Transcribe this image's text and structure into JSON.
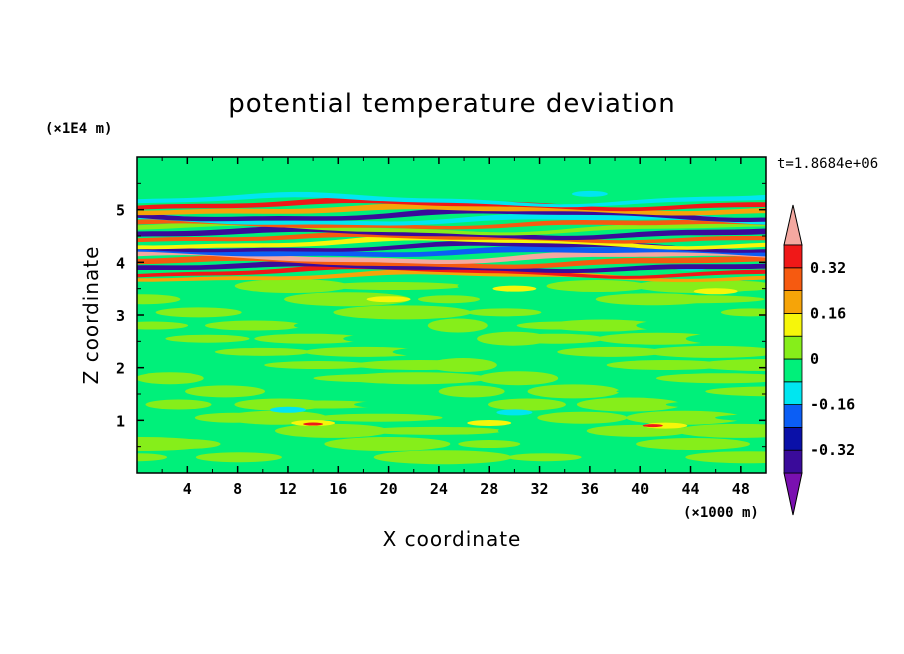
{
  "chart_data": {
    "type": "heatmap",
    "title": "potential temperature deviation",
    "xlabel": "X coordinate",
    "ylabel": "Z coordinate",
    "x_unit": "(×1000 m)",
    "y_unit": "(×1E4 m)",
    "time_label": "t=1.8684e+06",
    "xlim": [
      0,
      50
    ],
    "ylim": [
      0,
      6
    ],
    "x_ticks": [
      4,
      8,
      12,
      16,
      20,
      24,
      28,
      32,
      36,
      40,
      44,
      48
    ],
    "y_ticks": [
      1,
      2,
      3,
      4,
      5
    ],
    "x_tick_labels": [
      "4",
      "8",
      "12",
      "16",
      "20",
      "24",
      "28",
      "32",
      "36",
      "40",
      "44",
      "48"
    ],
    "y_tick_labels": [
      "1",
      "2",
      "3",
      "4",
      "5"
    ],
    "colorbar": {
      "levels": [
        -0.48,
        -0.4,
        -0.32,
        -0.24,
        -0.16,
        -0.08,
        0,
        0.08,
        0.16,
        0.24,
        0.32,
        0.4,
        0.48
      ],
      "tick_values": [
        -0.32,
        -0.16,
        0,
        0.16,
        0.32
      ],
      "tick_labels": [
        "-0.32",
        "-0.16",
        "0",
        "0.16",
        "0.32"
      ],
      "colors": [
        "#7a10b0",
        "#3a0b9a",
        "#0a10a8",
        "#0b5ef5",
        "#00e6f0",
        "#00f07a",
        "#86ee1a",
        "#f6f60a",
        "#f6a408",
        "#f65a10",
        "#f01818",
        "#f4a8a0"
      ],
      "extend": "both"
    },
    "layers": [
      {
        "z_range": [
          0.0,
          3.7
        ],
        "value": 0.0,
        "note": "background"
      },
      {
        "z_range": [
          3.7,
          3.78
        ],
        "value": 0.2
      },
      {
        "z_range": [
          3.78,
          3.86
        ],
        "value": 0.36
      },
      {
        "z_range": [
          3.86,
          3.95
        ],
        "value": -0.36
      },
      {
        "z_range": [
          3.95,
          4.05
        ],
        "value": 0.28
      },
      {
        "z_range": [
          4.05,
          4.15
        ],
        "value": 0.44
      },
      {
        "z_range": [
          4.15,
          4.25
        ],
        "value": -0.2
      },
      {
        "z_range": [
          4.25,
          4.33
        ],
        "value": -0.36
      },
      {
        "z_range": [
          4.33,
          4.42
        ],
        "value": 0.12
      },
      {
        "z_range": [
          4.42,
          4.5
        ],
        "value": 0.3
      },
      {
        "z_range": [
          4.5,
          4.6
        ],
        "value": -0.36
      },
      {
        "z_range": [
          4.6,
          4.68
        ],
        "value": 0.05
      },
      {
        "z_range": [
          4.68,
          4.76
        ],
        "value": 0.3
      },
      {
        "z_range": [
          4.76,
          4.85
        ],
        "value": -0.1
      },
      {
        "z_range": [
          4.85,
          4.95
        ],
        "value": -0.4
      },
      {
        "z_range": [
          4.95,
          5.05
        ],
        "value": 0.18
      },
      {
        "z_range": [
          5.05,
          5.14
        ],
        "value": 0.36
      },
      {
        "z_range": [
          5.14,
          5.22
        ],
        "value": -0.1
      },
      {
        "z_range": [
          5.22,
          6.0
        ],
        "value": 0.0,
        "note": "background"
      }
    ]
  }
}
